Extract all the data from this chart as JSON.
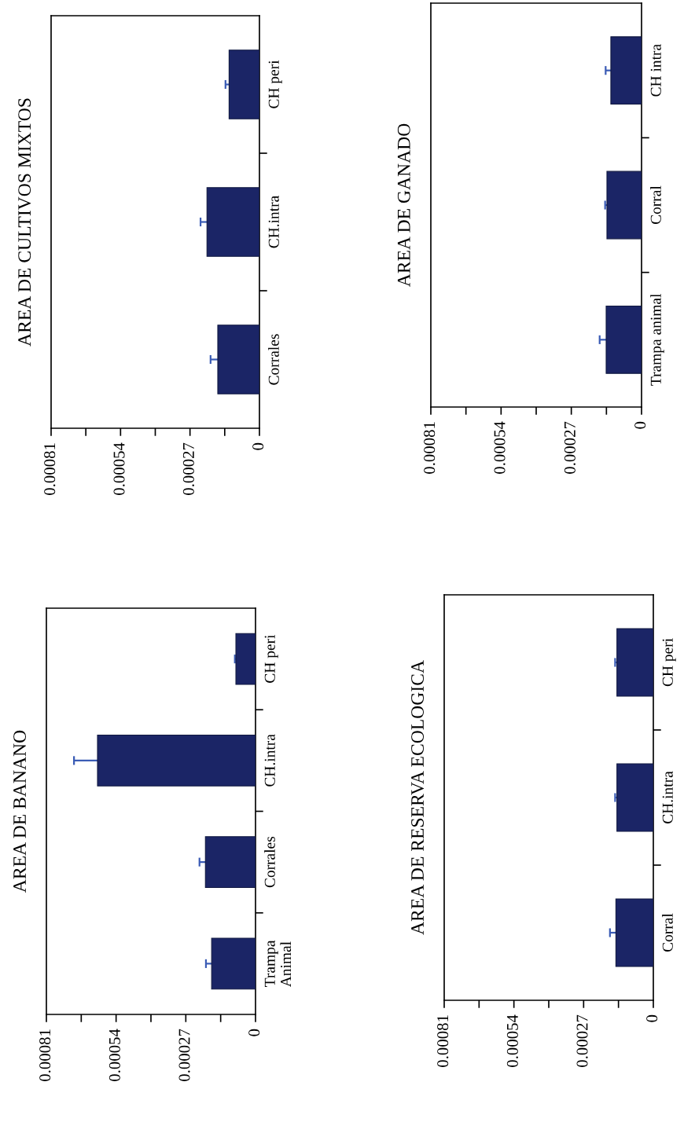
{
  "chart_data": [
    {
      "type": "bar",
      "orientation": "horizontal",
      "title": "AREA DE BANANO",
      "categories": [
        "CH peri",
        "CH.intra",
        "Corrales",
        "Trampa\nAnimal"
      ],
      "values": [
        7.6e-05,
        0.000612,
        0.000194,
        0.00017
      ],
      "errors": [
        4e-06,
        9.1e-05,
        2.3e-05,
        2.2e-05
      ],
      "color": "#1b2566",
      "xlim": [
        0.00081,
        0
      ],
      "xticks": [
        0.00081,
        {
          "value": 0.000675,
          "label": null
        },
        0.00054,
        {
          "value": 0.000405,
          "label": null
        },
        0.00027,
        {
          "value": 0.000135,
          "label": null
        },
        0
      ]
    },
    {
      "type": "bar",
      "orientation": "horizontal",
      "title": "AREA DE CULTIVOS MIXTOS",
      "categories": [
        "CH peri",
        "CH.intra",
        "Corrales"
      ],
      "values": [
        0.000118,
        0.000204,
        0.000162
      ],
      "errors": [
        1.4e-05,
        2.5e-05,
        2.8e-05
      ],
      "color": "#1b2566",
      "xlim": [
        0.00081,
        0
      ],
      "xticks": [
        0.00081,
        {
          "value": 0.000675,
          "label": null
        },
        0.00054,
        {
          "value": 0.000405,
          "label": null
        },
        0.00027,
        {
          "value": 0.000135,
          "label": null
        },
        0
      ]
    },
    {
      "type": "bar",
      "orientation": "horizontal",
      "title": "AREA DE RESERVA ECOLOGICA",
      "categories": [
        "CH peri",
        "CH.intra",
        "Corral"
      ],
      "values": [
        0.000141,
        0.000141,
        0.000145
      ],
      "errors": [
        7e-06,
        7e-06,
        2.3e-05
      ],
      "color": "#1b2566",
      "xlim": [
        0.00081,
        0
      ],
      "xticks": [
        0.00081,
        {
          "value": 0.000675,
          "label": null
        },
        0.00054,
        {
          "value": 0.000405,
          "label": null
        },
        0.00027,
        {
          "value": 0.000135,
          "label": null
        },
        0
      ]
    },
    {
      "type": "bar",
      "orientation": "horizontal",
      "title": "AREA DE GANADO",
      "categories": [
        "CH intra",
        "Corral",
        "Trampa animal"
      ],
      "values": [
        0.000118,
        0.000133,
        0.000136
      ],
      "errors": [
        2e-05,
        7e-06,
        2.5e-05
      ],
      "color": "#1b2566",
      "xlim": [
        0.00081,
        0
      ],
      "xticks": [
        0.00081,
        {
          "value": 0.000675,
          "label": null
        },
        0.00054,
        {
          "value": 0.000405,
          "label": null
        },
        0.00027,
        {
          "value": 0.000135,
          "label": null
        },
        0
      ]
    }
  ]
}
